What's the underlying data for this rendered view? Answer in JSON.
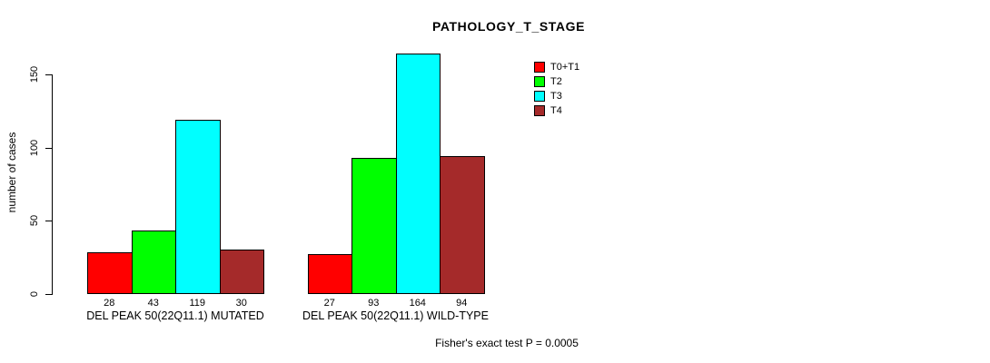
{
  "chart_data": {
    "type": "bar",
    "title": "PATHOLOGY_T_STAGE",
    "ylabel": "number of cases",
    "xlabel": "",
    "ylim": [
      0,
      170
    ],
    "yticks": [
      0,
      50,
      100,
      150
    ],
    "grid": false,
    "legend_position": "top-right",
    "categories": [
      "DEL PEAK 50(22Q11.1) MUTATED",
      "DEL PEAK 50(22Q11.1) WILD-TYPE"
    ],
    "series": [
      {
        "name": "T0+T1",
        "color": "#ff0000",
        "values": [
          28,
          27
        ]
      },
      {
        "name": "T2",
        "color": "#00ff00",
        "values": [
          43,
          93
        ]
      },
      {
        "name": "T3",
        "color": "#00ffff",
        "values": [
          119,
          164
        ]
      },
      {
        "name": "T4",
        "color": "#a52a2a",
        "values": [
          30,
          94
        ]
      }
    ],
    "bar_value_labels": [
      [
        28,
        43,
        119,
        30
      ],
      [
        27,
        93,
        164,
        94
      ]
    ],
    "annotation": "Fisher's exact test P = 0.0005"
  }
}
